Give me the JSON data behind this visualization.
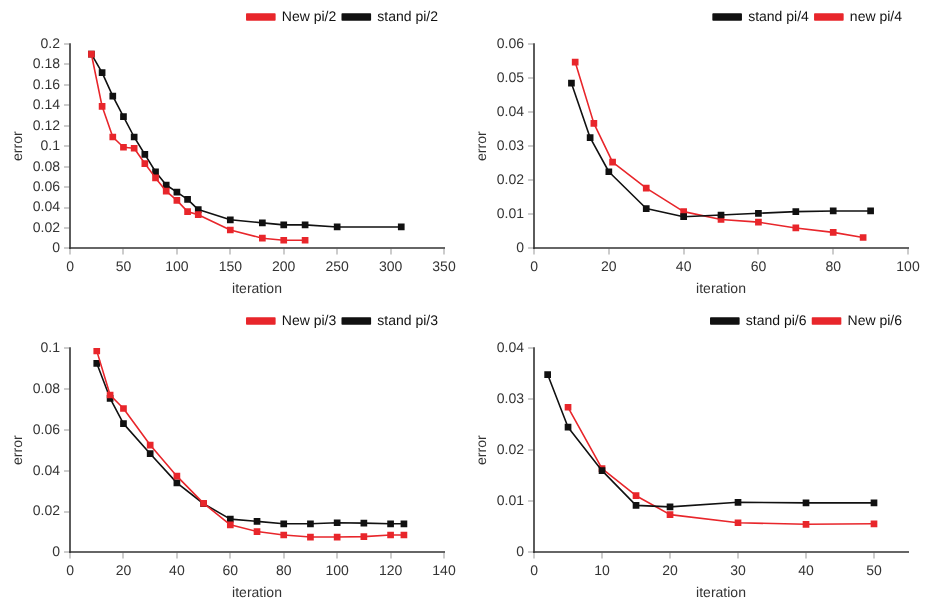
{
  "chart_data": [
    {
      "type": "line",
      "xlabel": "iteration",
      "ylabel": "error",
      "xlim": [
        0,
        350
      ],
      "xticks": [
        0,
        50,
        100,
        150,
        200,
        250,
        300,
        350
      ],
      "ylim": [
        0,
        0.2
      ],
      "yticks": [
        0,
        0.02,
        0.04,
        0.06,
        0.08,
        0.1,
        0.12,
        0.14,
        0.16,
        0.18,
        0.2
      ],
      "legend": "top right",
      "marker": "square",
      "line_style": "solid",
      "grid": false,
      "series": [
        {
          "name": "New pi/2",
          "color": "#e8262b",
          "x": [
            20,
            30,
            40,
            50,
            60,
            70,
            80,
            90,
            100,
            110,
            120,
            150,
            180,
            200,
            220
          ],
          "values": [
            0.19,
            0.139,
            0.109,
            0.099,
            0.098,
            0.083,
            0.069,
            0.056,
            0.047,
            0.036,
            0.033,
            0.018,
            0.01,
            0.008,
            0.008
          ]
        },
        {
          "name": "stand pi/2",
          "color": "#111111",
          "x": [
            20,
            30,
            40,
            50,
            60,
            70,
            80,
            90,
            100,
            110,
            120,
            150,
            180,
            200,
            220,
            250,
            310
          ],
          "values": [
            0.19,
            0.172,
            0.149,
            0.129,
            0.109,
            0.092,
            0.075,
            0.062,
            0.055,
            0.048,
            0.038,
            0.028,
            0.025,
            0.023,
            0.023,
            0.021,
            0.021
          ]
        }
      ]
    },
    {
      "type": "line",
      "xlabel": "iteration",
      "ylabel": "error",
      "xlim": [
        0,
        100
      ],
      "xticks": [
        0,
        20,
        40,
        60,
        80,
        100
      ],
      "ylim": [
        0,
        0.06
      ],
      "yticks": [
        0,
        0.01,
        0.02,
        0.03,
        0.04,
        0.05,
        0.06
      ],
      "legend": "top right",
      "marker": "square",
      "line_style": "solid",
      "grid": false,
      "series": [
        {
          "name": "stand pi/4",
          "color": "#111111",
          "x": [
            10,
            15,
            20,
            30,
            40,
            50,
            60,
            70,
            80,
            90
          ],
          "values": [
            0.0485,
            0.0325,
            0.0225,
            0.0117,
            0.0093,
            0.0098,
            0.0103,
            0.0108,
            0.011,
            0.011
          ]
        },
        {
          "name": "new pi/4",
          "color": "#e8262b",
          "x": [
            11,
            16,
            21,
            30,
            40,
            50,
            60,
            70,
            80,
            88
          ],
          "values": [
            0.0547,
            0.0367,
            0.0253,
            0.0177,
            0.0108,
            0.0085,
            0.0077,
            0.006,
            0.0047,
            0.0032
          ]
        }
      ]
    },
    {
      "type": "line",
      "xlabel": "iteration",
      "ylabel": "error",
      "xlim": [
        0,
        140
      ],
      "xticks": [
        0,
        20,
        40,
        60,
        80,
        100,
        120,
        140
      ],
      "ylim": [
        0,
        0.1
      ],
      "yticks": [
        0,
        0.02,
        0.04,
        0.06,
        0.08,
        0.1
      ],
      "legend": "top right",
      "marker": "square",
      "line_style": "solid",
      "grid": false,
      "series": [
        {
          "name": "New pi/3",
          "color": "#e8262b",
          "x": [
            10,
            15,
            20,
            30,
            40,
            50,
            60,
            70,
            80,
            90,
            100,
            110,
            120,
            125
          ],
          "values": [
            0.0986,
            0.077,
            0.0704,
            0.0525,
            0.0373,
            0.024,
            0.0135,
            0.0102,
            0.0085,
            0.0075,
            0.0075,
            0.0077,
            0.0085,
            0.0085
          ]
        },
        {
          "name": "stand pi/3",
          "color": "#111111",
          "x": [
            10,
            15,
            20,
            30,
            40,
            50,
            60,
            70,
            80,
            90,
            100,
            110,
            120,
            125
          ],
          "values": [
            0.0925,
            0.0754,
            0.063,
            0.0483,
            0.034,
            0.0238,
            0.0163,
            0.0152,
            0.014,
            0.014,
            0.0145,
            0.0143,
            0.014,
            0.014
          ]
        }
      ]
    },
    {
      "type": "line",
      "xlabel": "iteration",
      "ylabel": "error",
      "xlim": [
        0,
        55
      ],
      "xticks": [
        0,
        10,
        20,
        30,
        40,
        50
      ],
      "ylim": [
        0,
        0.04
      ],
      "yticks": [
        0,
        0.01,
        0.02,
        0.03,
        0.04
      ],
      "legend": "top right",
      "marker": "square",
      "line_style": "solid",
      "grid": false,
      "series": [
        {
          "name": "stand pi/6",
          "color": "#111111",
          "x": [
            2,
            5,
            10,
            15,
            20,
            30,
            40,
            50
          ],
          "values": [
            0.0348,
            0.0245,
            0.016,
            0.0092,
            0.0089,
            0.0098,
            0.0097,
            0.0097
          ]
        },
        {
          "name": "New pi/6",
          "color": "#e8262b",
          "x": [
            5,
            10,
            15,
            20,
            30,
            40,
            50
          ],
          "values": [
            0.0284,
            0.0164,
            0.0111,
            0.0074,
            0.0058,
            0.0055,
            0.0056
          ]
        }
      ]
    }
  ]
}
